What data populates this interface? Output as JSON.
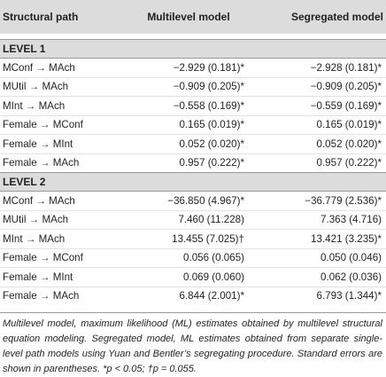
{
  "table": {
    "headers": [
      "Structural path",
      "Multilevel model",
      "Segregated model"
    ],
    "sections": [
      {
        "label": "LEVEL 1",
        "rows": [
          [
            "MConf → MAch",
            "−2.929 (0.181)*",
            "−2.928 (0.181)*"
          ],
          [
            "MUtil → MAch",
            "−0.909 (0.205)*",
            "−0.909 (0.205)*"
          ],
          [
            "MInt → MAch",
            "−0.558 (0.169)*",
            "−0.559 (0.169)*"
          ],
          [
            "Female → MConf",
            "0.165 (0.019)*",
            "0.165 (0.019)*"
          ],
          [
            "Female → MInt",
            "0.052 (0.020)*",
            "0.052 (0.020)*"
          ],
          [
            "Female → MAch",
            "0.957 (0.222)*",
            "0.957 (0.222)*"
          ]
        ]
      },
      {
        "label": "LEVEL 2",
        "rows": [
          [
            "MConf → MAch",
            "−36.850 (4.967)*",
            "−36.779 (2.536)*"
          ],
          [
            "MUtil → MAch",
            "7.460 (11.228)",
            "7.363 (4.716)"
          ],
          [
            "MInt → MAch",
            "13.455 (7.025)†",
            "13.421 (3.235)*"
          ],
          [
            "Female → MConf",
            "0.056 (0.065)",
            "0.050 (0.046)"
          ],
          [
            "Female → MInt",
            "0.069 (0.060)",
            "0.062 (0.036)"
          ],
          [
            "Female → MAch",
            "6.844 (2.001)*",
            "6.793 (1.344)*"
          ]
        ]
      }
    ]
  },
  "footnote": "Multilevel model, maximum likelihood (ML) estimates obtained by multilevel structural equation modeling. Segregated model, ML estimates obtained from separate single-level path models using Yuan and Bentler’s segregating procedure. Standard errors are shown in parentheses. *p < 0.05; †p = 0.055."
}
